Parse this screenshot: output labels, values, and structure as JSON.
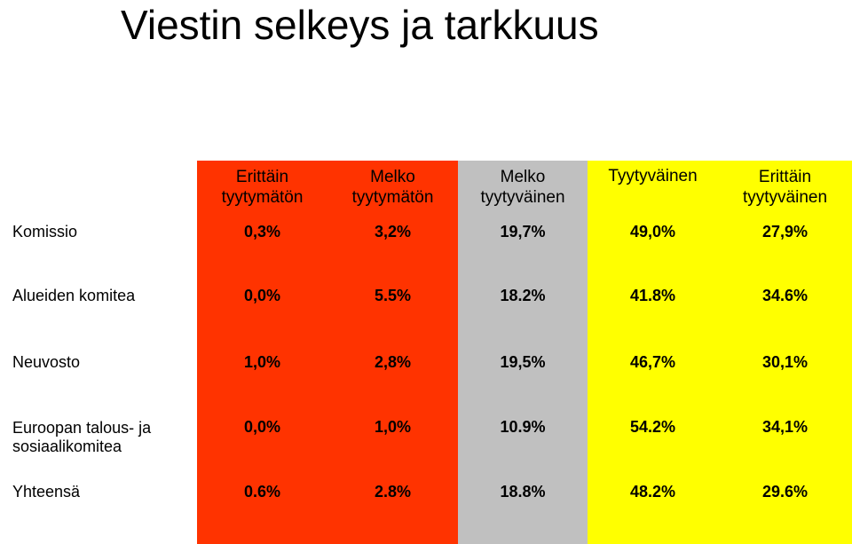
{
  "title": "Viestin selkeys ja tarkkuus",
  "colors": {
    "very_dissatisfied": "#ff3300",
    "rather_dissatisfied": "#ff3300",
    "rather_satisfied": "#c0c0c0",
    "satisfied": "#ffff00",
    "very_satisfied": "#ffff00"
  },
  "columns": [
    "Erittäin\ntyytymätön",
    "Melko\ntyytymätön",
    "Melko\ntyytyväinen",
    "Tyytyväinen",
    "Erittäin\ntyytyväinen"
  ],
  "rows": [
    {
      "label": "Komissio",
      "values": [
        "0,3%",
        "3,2%",
        "19,7%",
        "49,0%",
        "27,9%"
      ]
    },
    {
      "label": "Alueiden komitea",
      "values": [
        "0,0%",
        "5.5%",
        "18.2%",
        "41.8%",
        "34.6%"
      ]
    },
    {
      "label": "Neuvosto",
      "values": [
        "1,0%",
        "2,8%",
        "19,5%",
        "46,7%",
        "30,1%"
      ]
    },
    {
      "label": "Euroopan talous- ja\nsosiaalikomitea",
      "values": [
        "0,0%",
        "1,0%",
        "10.9%",
        "54.2%",
        "34,1%"
      ]
    },
    {
      "label": "Yhteensä",
      "values": [
        "0.6%",
        "2.8%",
        "18.8%",
        "48.2%",
        "29.6%"
      ]
    }
  ]
}
